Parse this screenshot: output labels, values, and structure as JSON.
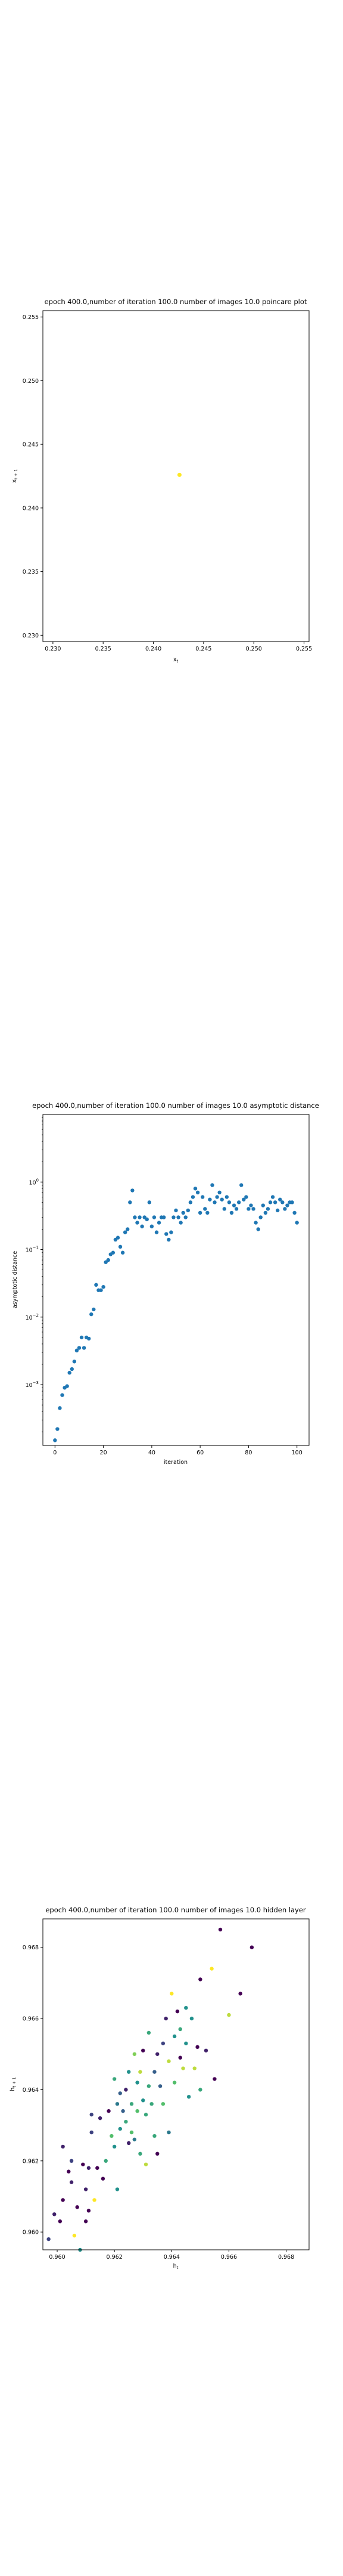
{
  "chart_data": [
    {
      "type": "scatter",
      "title": "epoch 400.0,number of iteration 100.0 number of images 10.0 poincare plot",
      "xlabel": "x_t",
      "ylabel": "x_{t+1}",
      "xlim": [
        0.229,
        0.2555
      ],
      "ylim": [
        0.2295,
        0.2555
      ],
      "xticks": [
        "0.230",
        "0.235",
        "0.240",
        "0.245",
        "0.250",
        "0.255"
      ],
      "yticks": [
        "0.230",
        "0.235",
        "0.240",
        "0.245",
        "0.250",
        "0.255"
      ],
      "grid": false,
      "points": [
        {
          "x": 0.2426,
          "y": 0.2426
        }
      ],
      "marker_color": "#fde725"
    },
    {
      "type": "scatter",
      "title": "epoch 400.0,number of iteration 100.0  number of images 10.0 asymptotic distance",
      "xlabel": "iteration",
      "ylabel": "asymptotic distance",
      "yscale": "log",
      "xlim": [
        -5,
        105
      ],
      "ylim_log10": [
        -3.9,
        1.0
      ],
      "xticks": [
        "0",
        "20",
        "40",
        "60",
        "80",
        "100"
      ],
      "yticks": [
        {
          "base": "10",
          "exp": "−3"
        },
        {
          "base": "10",
          "exp": "−2"
        },
        {
          "base": "10",
          "exp": "−1"
        },
        {
          "base": "10",
          "exp": "0"
        }
      ],
      "grid": false,
      "marker_color": "#1f77b4",
      "x": [
        0,
        1,
        2,
        3,
        4,
        5,
        6,
        7,
        8,
        9,
        10,
        11,
        12,
        13,
        14,
        15,
        16,
        17,
        18,
        19,
        20,
        21,
        22,
        23,
        24,
        25,
        26,
        27,
        28,
        29,
        30,
        31,
        32,
        33,
        34,
        35,
        36,
        37,
        38,
        39,
        40,
        41,
        42,
        43,
        44,
        45,
        46,
        47,
        48,
        49,
        50,
        51,
        52,
        53,
        54,
        55,
        56,
        57,
        58,
        59,
        60,
        61,
        62,
        63,
        64,
        65,
        66,
        67,
        68,
        69,
        70,
        71,
        72,
        73,
        74,
        75,
        76,
        77,
        78,
        79,
        80,
        81,
        82,
        83,
        84,
        85,
        86,
        87,
        88,
        89,
        90,
        91,
        92,
        93,
        94,
        95,
        96,
        97,
        98,
        99,
        100
      ],
      "y": [
        0.00015,
        0.00022,
        0.00045,
        0.0007,
        0.0009,
        0.00095,
        0.0015,
        0.0017,
        0.0022,
        0.0032,
        0.0035,
        0.005,
        0.0035,
        0.005,
        0.0048,
        0.011,
        0.013,
        0.03,
        0.025,
        0.025,
        0.028,
        0.065,
        0.07,
        0.085,
        0.09,
        0.14,
        0.15,
        0.11,
        0.09,
        0.18,
        0.2,
        0.5,
        0.75,
        0.3,
        0.25,
        0.3,
        0.22,
        0.3,
        0.28,
        0.5,
        0.22,
        0.3,
        0.18,
        0.25,
        0.3,
        0.3,
        0.17,
        0.14,
        0.18,
        0.3,
        0.38,
        0.3,
        0.25,
        0.35,
        0.3,
        0.38,
        0.5,
        0.6,
        0.8,
        0.7,
        0.35,
        0.6,
        0.4,
        0.35,
        0.55,
        0.9,
        0.5,
        0.6,
        0.7,
        0.55,
        0.4,
        0.6,
        0.5,
        0.35,
        0.45,
        0.4,
        0.5,
        0.9,
        0.55,
        0.6,
        0.4,
        0.45,
        0.4,
        0.25,
        0.2,
        0.3,
        0.45,
        0.35,
        0.4,
        0.5,
        0.6,
        0.5,
        0.38,
        0.55,
        0.5,
        0.4,
        0.45,
        0.5,
        0.5,
        0.35,
        0.25
      ]
    },
    {
      "type": "scatter",
      "title": "epoch 400.0,number of iteration 100.0  number of images 10.0 hidden layer",
      "xlabel": "h_t",
      "ylabel": "h_{t+1}",
      "xlim": [
        0.9595,
        0.9688
      ],
      "ylim": [
        0.9595,
        0.9688
      ],
      "xticks": [
        "0.960",
        "0.962",
        "0.964",
        "0.966",
        "0.968"
      ],
      "yticks": [
        "0.960",
        "0.962",
        "0.964",
        "0.966",
        "0.968"
      ],
      "grid": false,
      "colormap": "viridis",
      "points": [
        {
          "x": 0.9597,
          "y": 0.9598,
          "c": 0.2
        },
        {
          "x": 0.9599,
          "y": 0.9605,
          "c": 0.1
        },
        {
          "x": 0.9601,
          "y": 0.9603,
          "c": 0.0
        },
        {
          "x": 0.9602,
          "y": 0.9609,
          "c": 0.0
        },
        {
          "x": 0.9602,
          "y": 0.9624,
          "c": 0.1
        },
        {
          "x": 0.9604,
          "y": 0.9617,
          "c": 0.0
        },
        {
          "x": 0.9605,
          "y": 0.9614,
          "c": 0.1
        },
        {
          "x": 0.9605,
          "y": 0.962,
          "c": 0.2
        },
        {
          "x": 0.9606,
          "y": 0.9599,
          "c": 1.0
        },
        {
          "x": 0.9607,
          "y": 0.9607,
          "c": 0.0
        },
        {
          "x": 0.9608,
          "y": 0.9595,
          "c": 0.5
        },
        {
          "x": 0.9609,
          "y": 0.9619,
          "c": 0.0
        },
        {
          "x": 0.961,
          "y": 0.9603,
          "c": 0.0
        },
        {
          "x": 0.961,
          "y": 0.9612,
          "c": 0.1
        },
        {
          "x": 0.9611,
          "y": 0.9606,
          "c": 0.0
        },
        {
          "x": 0.9611,
          "y": 0.9618,
          "c": 0.1
        },
        {
          "x": 0.9612,
          "y": 0.9628,
          "c": 0.2
        },
        {
          "x": 0.9612,
          "y": 0.9633,
          "c": 0.2
        },
        {
          "x": 0.9613,
          "y": 0.9609,
          "c": 1.0
        },
        {
          "x": 0.9614,
          "y": 0.9618,
          "c": 0.0
        },
        {
          "x": 0.9615,
          "y": 0.9632,
          "c": 0.1
        },
        {
          "x": 0.9616,
          "y": 0.9615,
          "c": 0.0
        },
        {
          "x": 0.9617,
          "y": 0.962,
          "c": 0.6
        },
        {
          "x": 0.9618,
          "y": 0.9634,
          "c": 0.0
        },
        {
          "x": 0.9619,
          "y": 0.9627,
          "c": 0.7
        },
        {
          "x": 0.962,
          "y": 0.9643,
          "c": 0.6
        },
        {
          "x": 0.962,
          "y": 0.9624,
          "c": 0.5
        },
        {
          "x": 0.9621,
          "y": 0.9612,
          "c": 0.5
        },
        {
          "x": 0.9621,
          "y": 0.9636,
          "c": 0.4
        },
        {
          "x": 0.9622,
          "y": 0.9639,
          "c": 0.3
        },
        {
          "x": 0.9622,
          "y": 0.9629,
          "c": 0.5
        },
        {
          "x": 0.9623,
          "y": 0.9634,
          "c": 0.3
        },
        {
          "x": 0.9624,
          "y": 0.9631,
          "c": 0.6
        },
        {
          "x": 0.9624,
          "y": 0.964,
          "c": 0.1
        },
        {
          "x": 0.9625,
          "y": 0.9625,
          "c": 0.1
        },
        {
          "x": 0.9625,
          "y": 0.9645,
          "c": 0.5
        },
        {
          "x": 0.9626,
          "y": 0.9636,
          "c": 0.6
        },
        {
          "x": 0.9626,
          "y": 0.9628,
          "c": 0.7
        },
        {
          "x": 0.9627,
          "y": 0.965,
          "c": 0.8
        },
        {
          "x": 0.9627,
          "y": 0.9626,
          "c": 0.4
        },
        {
          "x": 0.9628,
          "y": 0.9634,
          "c": 0.7
        },
        {
          "x": 0.9628,
          "y": 0.9642,
          "c": 0.5
        },
        {
          "x": 0.9629,
          "y": 0.9622,
          "c": 0.6
        },
        {
          "x": 0.9629,
          "y": 0.9645,
          "c": 0.9
        },
        {
          "x": 0.963,
          "y": 0.9637,
          "c": 0.5
        },
        {
          "x": 0.963,
          "y": 0.9651,
          "c": 0.0
        },
        {
          "x": 0.9631,
          "y": 0.9633,
          "c": 0.6
        },
        {
          "x": 0.9631,
          "y": 0.9619,
          "c": 0.9
        },
        {
          "x": 0.9632,
          "y": 0.9641,
          "c": 0.6
        },
        {
          "x": 0.9632,
          "y": 0.9656,
          "c": 0.6
        },
        {
          "x": 0.9633,
          "y": 0.9636,
          "c": 0.6
        },
        {
          "x": 0.9634,
          "y": 0.9645,
          "c": 0.3
        },
        {
          "x": 0.9634,
          "y": 0.9627,
          "c": 0.6
        },
        {
          "x": 0.9635,
          "y": 0.965,
          "c": 0.1
        },
        {
          "x": 0.9635,
          "y": 0.9622,
          "c": 0.0
        },
        {
          "x": 0.9636,
          "y": 0.9641,
          "c": 0.3
        },
        {
          "x": 0.9637,
          "y": 0.9653,
          "c": 0.2
        },
        {
          "x": 0.9637,
          "y": 0.9636,
          "c": 0.7
        },
        {
          "x": 0.9638,
          "y": 0.966,
          "c": 0.1
        },
        {
          "x": 0.9639,
          "y": 0.9648,
          "c": 0.9
        },
        {
          "x": 0.9639,
          "y": 0.9628,
          "c": 0.4
        },
        {
          "x": 0.964,
          "y": 0.9667,
          "c": 1.0
        },
        {
          "x": 0.9641,
          "y": 0.9655,
          "c": 0.5
        },
        {
          "x": 0.9641,
          "y": 0.9642,
          "c": 0.7
        },
        {
          "x": 0.9642,
          "y": 0.9662,
          "c": 0.0
        },
        {
          "x": 0.9643,
          "y": 0.9649,
          "c": 0.0
        },
        {
          "x": 0.9643,
          "y": 0.9657,
          "c": 0.6
        },
        {
          "x": 0.9644,
          "y": 0.9646,
          "c": 0.9
        },
        {
          "x": 0.9645,
          "y": 0.9653,
          "c": 0.5
        },
        {
          "x": 0.9645,
          "y": 0.9663,
          "c": 0.5
        },
        {
          "x": 0.9646,
          "y": 0.9638,
          "c": 0.5
        },
        {
          "x": 0.9647,
          "y": 0.966,
          "c": 0.5
        },
        {
          "x": 0.9648,
          "y": 0.9646,
          "c": 0.9
        },
        {
          "x": 0.9649,
          "y": 0.9652,
          "c": 0.0
        },
        {
          "x": 0.965,
          "y": 0.9671,
          "c": 0.0
        },
        {
          "x": 0.965,
          "y": 0.964,
          "c": 0.6
        },
        {
          "x": 0.9652,
          "y": 0.9651,
          "c": 0.1
        },
        {
          "x": 0.9654,
          "y": 0.9674,
          "c": 1.0
        },
        {
          "x": 0.9655,
          "y": 0.9643,
          "c": 0.0
        },
        {
          "x": 0.9657,
          "y": 0.9685,
          "c": 0.0
        },
        {
          "x": 0.966,
          "y": 0.9661,
          "c": 0.9
        },
        {
          "x": 0.9664,
          "y": 0.9667,
          "c": 0.0
        },
        {
          "x": 0.9668,
          "y": 0.968,
          "c": 0.0
        }
      ]
    }
  ]
}
